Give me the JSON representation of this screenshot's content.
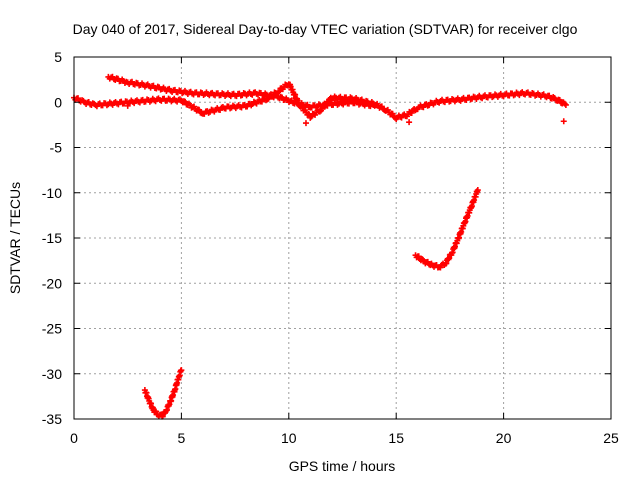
{
  "chart_data": {
    "type": "scatter",
    "title": "Day 040 of 2017, Sidereal Day-to-day VTEC variation (SDTVAR) for receiver clgo",
    "xlabel": "GPS time / hours",
    "ylabel": "SDTVAR / TECUs",
    "xlim": [
      0,
      25
    ],
    "ylim": [
      -35,
      5
    ],
    "x_ticks": [
      0,
      5,
      10,
      15,
      20,
      25
    ],
    "x_tick_labels": [
      "0",
      "5",
      "10",
      "15",
      "20",
      "25"
    ],
    "y_ticks": [
      5,
      0,
      -5,
      -10,
      -15,
      -20,
      -25,
      -30,
      -35
    ],
    "y_tick_labels": [
      "5",
      "0",
      "-5",
      "-10",
      "-15",
      "-20",
      "-25",
      "-30",
      "-35"
    ],
    "grid": true,
    "marker": "plus",
    "series": [
      {
        "name": "near-zero scatter (upper band)",
        "color": "#ff0000",
        "x": [
          1.6,
          2.5,
          3.5,
          4.5,
          5.5,
          6.5,
          7.5,
          8.5,
          9.5,
          10.2,
          11.0,
          12.0,
          13.0,
          14.0
        ],
        "y": [
          2.8,
          2.2,
          1.8,
          1.3,
          1.0,
          0.9,
          0.8,
          1.0,
          0.6,
          0.0,
          -0.5,
          -0.2,
          0.0,
          -0.4
        ]
      },
      {
        "name": "near-zero scatter (lower band)",
        "color": "#ff0000",
        "x": [
          0.0,
          0.5,
          1.0,
          2.0,
          3.0,
          4.0,
          5.0,
          6.0,
          7.0,
          8.0,
          9.0,
          9.5,
          10.0,
          10.5,
          11.0,
          11.5,
          12.0,
          13.0,
          14.0,
          14.5,
          15.0,
          15.5,
          16.0,
          17.0,
          18.0,
          19.0,
          20.0,
          21.0,
          22.0,
          22.5,
          22.9
        ],
        "y": [
          0.5,
          0.0,
          -0.3,
          -0.1,
          0.1,
          0.3,
          0.2,
          -1.2,
          -0.6,
          -0.4,
          0.4,
          1.2,
          2.1,
          -0.3,
          -1.6,
          -0.8,
          0.5,
          0.4,
          -0.2,
          -0.8,
          -1.7,
          -1.4,
          -0.6,
          0.1,
          0.3,
          0.6,
          0.8,
          1.0,
          0.7,
          0.3,
          -0.3
        ]
      },
      {
        "name": "outlier points",
        "color": "#ff0000",
        "x": [
          2.5,
          10.8,
          15.6,
          22.8
        ],
        "y": [
          -0.4,
          -2.3,
          -2.2,
          -2.1
        ]
      },
      {
        "name": "arc near 4 h",
        "color": "#ff0000",
        "x": [
          3.3,
          3.5,
          3.7,
          3.9,
          4.1,
          4.3,
          4.5,
          4.7,
          4.9,
          5.0
        ],
        "y": [
          -31.8,
          -33.0,
          -34.0,
          -34.5,
          -34.7,
          -34.0,
          -33.0,
          -31.7,
          -30.2,
          -29.6
        ]
      },
      {
        "name": "arc near 17 h",
        "color": "#ff0000",
        "x": [
          15.9,
          16.3,
          16.7,
          17.0,
          17.3,
          17.6,
          17.9,
          18.2,
          18.5,
          18.8
        ],
        "y": [
          -16.9,
          -17.6,
          -18.0,
          -18.2,
          -17.8,
          -16.6,
          -15.0,
          -13.2,
          -11.5,
          -9.7
        ]
      }
    ]
  }
}
